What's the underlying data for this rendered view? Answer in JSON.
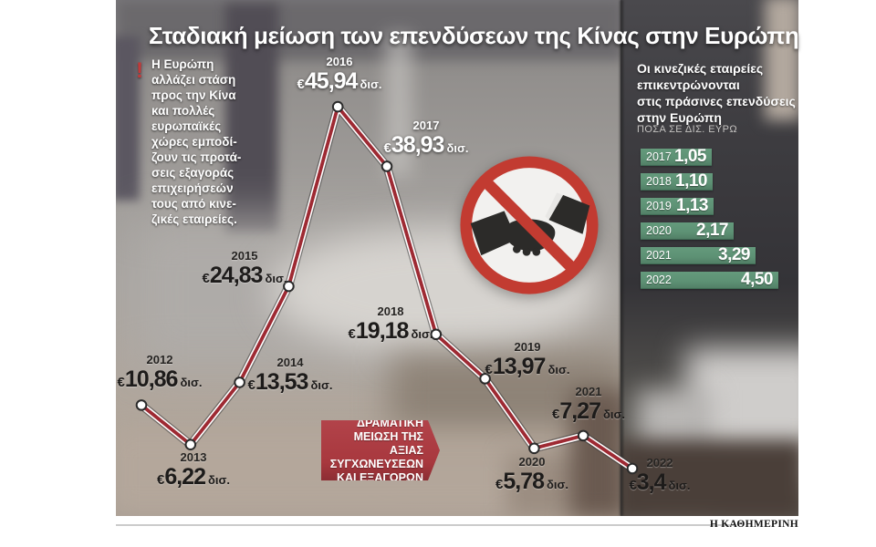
{
  "title": "Σταδιακή μείωση των επενδύσεων της Κίνας στην Ευρώπη",
  "intro": {
    "icon": "exclamation-icon",
    "icon_glyph": "!",
    "lines": [
      "Η Ευρώπη",
      "αλλάζει στάση",
      "προς την Κίνα",
      "και πολλές",
      "ευρωπαϊκές",
      "χώρες εμποδί-",
      "ζουν τις προτά-",
      "σεις εξαγοράς",
      "επιχειρήσεών",
      "τους από κινε-",
      "ζικές εταιρείες."
    ]
  },
  "callout": {
    "lines": [
      "ΔΡΑΜΑΤΙΚΗ",
      "ΜΕΙΩΣΗ ΤΗΣ ΑΞΙΑΣ",
      "ΣΥΓΧΩΝΕΥΣΕΩΝ",
      "ΚΑΙ ΕΞΑΓΟΡΩΝ"
    ]
  },
  "green_panel": {
    "heading_lines": [
      "Οι κινεζικές εταιρείες",
      "επικεντρώνονται",
      "στις πράσινες επενδύσεις",
      "στην Ευρώπη"
    ],
    "subtitle": "ΠΟΣΑ ΣΕ ΔΙΣ. ΕΥΡΩ"
  },
  "footer": {
    "brand": "Η ΚΑΘΗΜΕΡΙΝΗ"
  },
  "icons": {
    "prohibition": "no-handshake-icon",
    "note": "exclamation-icon"
  },
  "colors": {
    "line_red": "#9e2a33",
    "line_casing": "#3d3b3a",
    "point_fill": "#ffffff",
    "point_stroke": "#2a2a2a",
    "callout_red": "#a8383e",
    "sign_red": "#c23b31",
    "bar_green": "#5d9174"
  },
  "chart_data": [
    {
      "type": "line",
      "title": "Σταδιακή μείωση των επενδύσεων της Κίνας στην Ευρώπη",
      "currency": "€",
      "unit": "δισ.",
      "x": [
        "2012",
        "2013",
        "2014",
        "2015",
        "2016",
        "2017",
        "2018",
        "2019",
        "2020",
        "2021",
        "2022"
      ],
      "values": [
        10.86,
        6.22,
        13.53,
        24.83,
        45.94,
        38.93,
        19.18,
        13.97,
        5.78,
        7.27,
        3.4
      ],
      "value_labels": [
        "10,86",
        "6,22",
        "13,53",
        "24,83",
        "45,94",
        "38,93",
        "19,18",
        "13,97",
        "5,78",
        "7,27",
        "3,4"
      ],
      "ylim": [
        0,
        50
      ],
      "grid": false,
      "annotation": "ΔΡΑΜΑΤΙΚΗ ΜΕΙΩΣΗ ΤΗΣ ΑΞΙΑΣ ΣΥΓΧΩΝΕΥΣΕΩΝ ΚΑΙ ΕΞΑΓΟΡΩΝ"
    },
    {
      "type": "bar",
      "orientation": "horizontal",
      "title": "Οι κινεζικές εταιρείες επικεντρώνονται στις πράσινες επενδύσεις στην Ευρώπη",
      "units_label": "ΠΟΣΑ ΣΕ ΔΙΣ. ΕΥΡΩ",
      "categories": [
        "2017",
        "2018",
        "2019",
        "2020",
        "2021",
        "2022"
      ],
      "values": [
        1.05,
        1.1,
        1.13,
        2.17,
        3.29,
        4.5
      ],
      "value_labels": [
        "1,05",
        "1,10",
        "1,13",
        "2,17",
        "3,29",
        "4,50"
      ]
    }
  ]
}
